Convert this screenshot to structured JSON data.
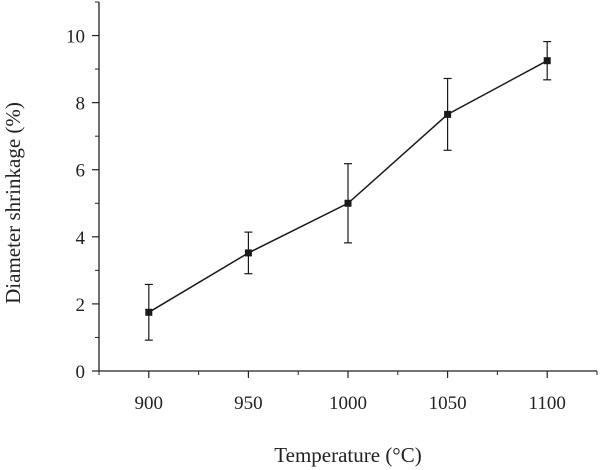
{
  "chart_data": {
    "type": "line",
    "xlabel": "Temperature (°C)",
    "ylabel": "Diameter shrinkage (%)",
    "x_ticks": [
      "900",
      "950",
      "1000",
      "1050",
      "1100"
    ],
    "y_ticks": [
      "0",
      "2",
      "4",
      "6",
      "8",
      "10"
    ],
    "xlim": [
      875,
      1125
    ],
    "ylim": [
      0,
      11
    ],
    "grid": false,
    "legend": "none",
    "series": [
      {
        "x": [
          900,
          950,
          1000,
          1050,
          1100
        ],
        "y": [
          1.75,
          3.52,
          5.0,
          7.65,
          9.25
        ],
        "error": [
          0.83,
          0.62,
          1.18,
          1.07,
          0.57
        ]
      }
    ],
    "colors": {
      "line": "#1a1a1a",
      "axis": "#222222"
    }
  }
}
